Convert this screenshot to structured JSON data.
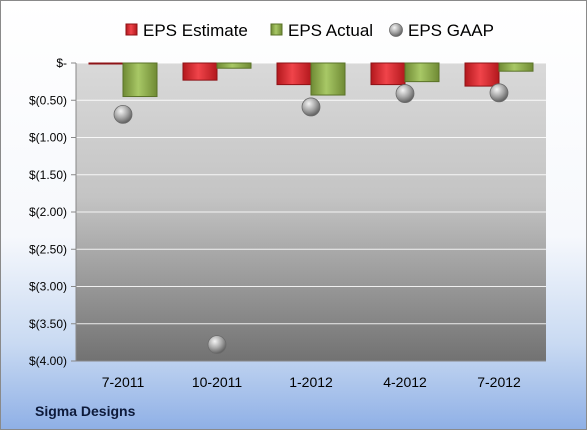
{
  "company_label": "Sigma Designs",
  "chart_data": {
    "type": "bar",
    "categories": [
      "7-2011",
      "10-2011",
      "1-2012",
      "4-2012",
      "7-2012"
    ],
    "series": [
      {
        "name": "EPS Estimate",
        "kind": "bar",
        "color": "#e8343a",
        "values": [
          -0.01,
          -0.23,
          -0.29,
          -0.29,
          -0.31
        ]
      },
      {
        "name": "EPS Actual",
        "kind": "bar",
        "color": "#9bbb59",
        "values": [
          -0.45,
          -0.07,
          -0.43,
          -0.25,
          -0.11
        ]
      },
      {
        "name": "EPS GAAP",
        "kind": "point",
        "color": "#a6a6a6",
        "values": [
          -0.69,
          -3.78,
          -0.59,
          -0.41,
          -0.4
        ]
      }
    ],
    "ylim": [
      -4.0,
      0
    ],
    "yticks": [
      0,
      -0.5,
      -1.0,
      -1.5,
      -2.0,
      -2.5,
      -3.0,
      -3.5,
      -4.0
    ],
    "ytick_labels": [
      "$-",
      "$(0.50)",
      "$(1.00)",
      "$(1.50)",
      "$(2.00)",
      "$(2.50)",
      "$(3.00)",
      "$(3.50)",
      "$(4.00)"
    ],
    "legend_position": "top",
    "grid": true
  }
}
